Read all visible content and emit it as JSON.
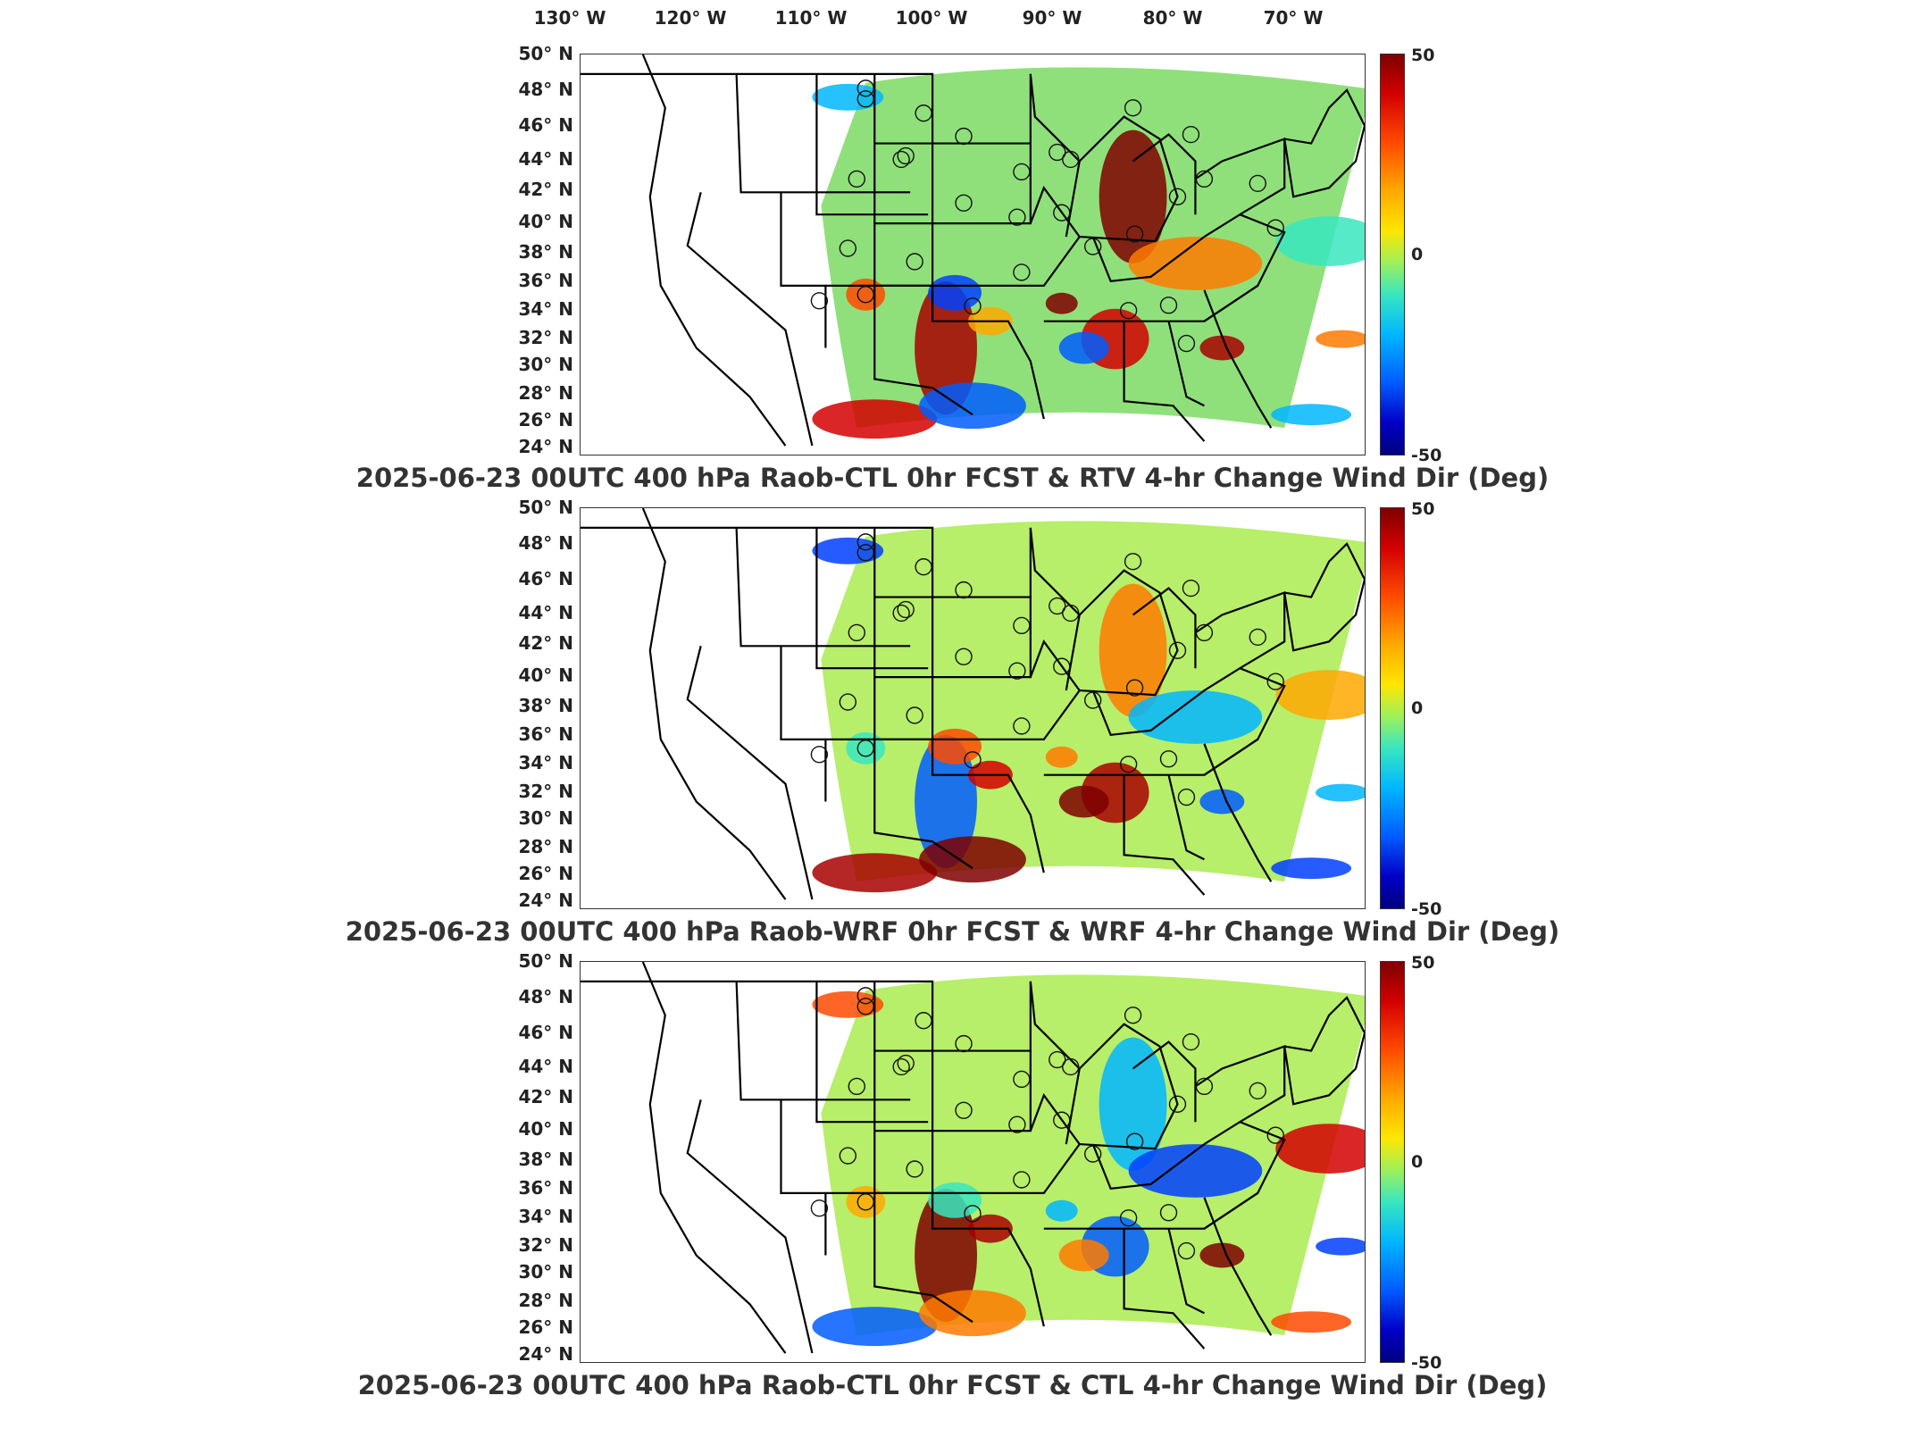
{
  "lon_ticks": [
    "130° W",
    "120° W",
    "110° W",
    "100° W",
    "90° W",
    "80° W",
    "70° W"
  ],
  "lat_ticks": [
    "50° N",
    "48° N",
    "46° N",
    "44° N",
    "42° N",
    "40° N",
    "38° N",
    "36° N",
    "34° N",
    "32° N",
    "30° N",
    "28° N",
    "26° N",
    "24° N"
  ],
  "colorbar": {
    "max": "50",
    "mid": "0",
    "min": "-50",
    "colors": [
      "#7f0000",
      "#d40000",
      "#ff4a00",
      "#ffa800",
      "#ffe600",
      "#9ef05a",
      "#38e6c0",
      "#00b6ff",
      "#005cff",
      "#0000c8",
      "#00007f"
    ]
  },
  "panels": [
    {
      "title": "2025-06-23 00UTC 400 hPa Raob-CTL 0hr FCST & RTV 4-hr Change Wind Dir (Deg)"
    },
    {
      "title": "2025-06-23 00UTC 400 hPa Raob-WRF 0hr FCST & WRF 4-hr Change Wind Dir (Deg)"
    },
    {
      "title": "2025-06-23 00UTC 400 hPa Raob-CTL 0hr FCST & CTL 4-hr Change Wind Dir (Deg)"
    }
  ]
}
